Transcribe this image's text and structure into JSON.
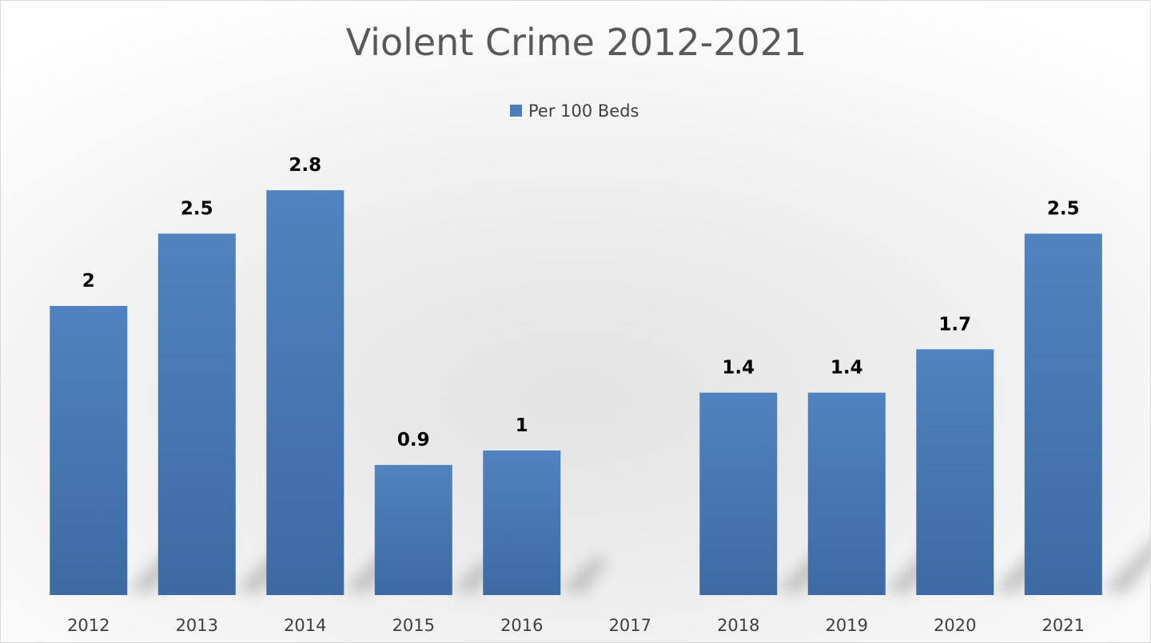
{
  "chart_data": {
    "type": "bar",
    "title": "Violent Crime 2012-2021",
    "categories": [
      "2012",
      "2013",
      "2014",
      "2015",
      "2016",
      "2017",
      "2018",
      "2019",
      "2020",
      "2021"
    ],
    "series": [
      {
        "name": "Per 100 Beds",
        "color": "#4a7ebb",
        "values": [
          2,
          2.5,
          2.8,
          0.9,
          1,
          null,
          1.4,
          1.4,
          1.7,
          2.5
        ],
        "data_labels": [
          "2",
          "2.5",
          "2.8",
          "0.9",
          "1",
          "",
          "1.4",
          "1.4",
          "1.7",
          "2.5"
        ]
      }
    ],
    "ylim": [
      0,
      3
    ],
    "xlabel": "",
    "ylabel": "",
    "grid": false,
    "legend_position": "top-center",
    "data_labels_shown": true,
    "value_axis_shown": false
  }
}
